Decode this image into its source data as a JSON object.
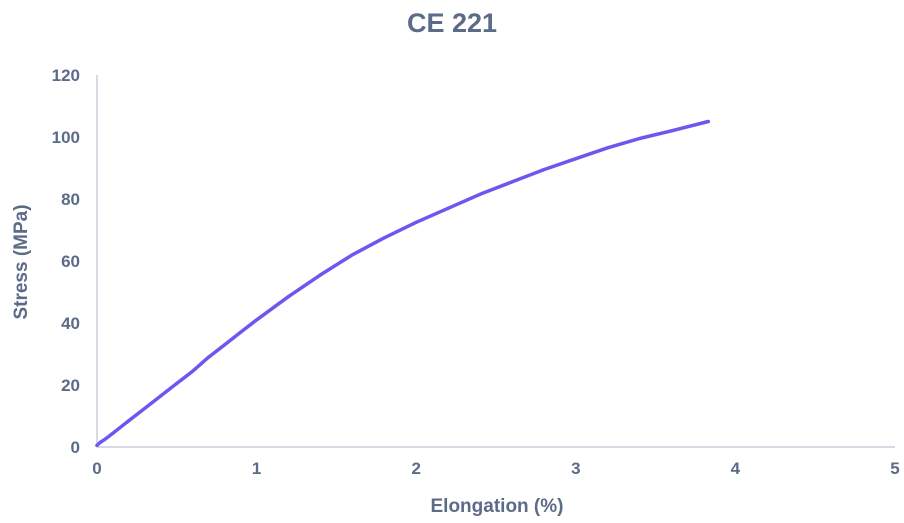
{
  "colors": {
    "text": "#5b6b88",
    "axis": "#c8cdd8",
    "series": "#6d57ee"
  },
  "chart_data": {
    "type": "line",
    "title": "CE 221",
    "xlabel": "Elongation (%)",
    "ylabel": "Stress (MPa)",
    "xlim": [
      0,
      5
    ],
    "ylim": [
      0,
      120
    ],
    "x_ticks": [
      "0",
      "1",
      "2",
      "3",
      "4",
      "5"
    ],
    "y_ticks": [
      "0",
      "20",
      "40",
      "60",
      "80",
      "100",
      "120"
    ],
    "grid": false,
    "legend": "none",
    "series": [
      {
        "x": [
          0.0,
          0.02,
          0.05,
          0.1,
          0.2,
          0.3,
          0.4,
          0.5,
          0.6,
          0.7,
          0.8,
          0.9,
          1.0,
          1.2,
          1.4,
          1.6,
          1.8,
          2.0,
          2.2,
          2.4,
          2.6,
          2.8,
          3.0,
          3.2,
          3.4,
          3.6,
          3.83
        ],
        "y": [
          0.5,
          1.5,
          2.5,
          4.5,
          8.5,
          12.5,
          16.5,
          20.5,
          24.5,
          29,
          33,
          37,
          41,
          48.5,
          55.5,
          62,
          67.5,
          72.5,
          77,
          81.5,
          85.5,
          89.5,
          93,
          96.5,
          99.5,
          102,
          105
        ]
      }
    ]
  }
}
